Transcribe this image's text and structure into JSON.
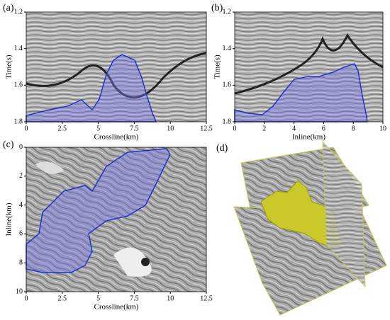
{
  "panels": [
    {
      "label": "(a)",
      "x_label": "Crossline(km)",
      "y_label": "Time(s)",
      "xticks": [
        0,
        2.5,
        5,
        7.5,
        10,
        12.5
      ],
      "yticks": [
        1.2,
        1.4,
        1.6,
        1.8
      ]
    },
    {
      "label": "(b)",
      "x_label": "Inline(km)",
      "y_label": "Time(s)",
      "xticks": [
        0,
        2,
        4,
        6,
        8,
        10
      ],
      "yticks": [
        1.2,
        1.4,
        1.6,
        1.8
      ]
    },
    {
      "label": "(c)",
      "x_label": "Crossline(km)",
      "y_label": "Inline(km)",
      "xticks": [
        0,
        2.5,
        5,
        7.5,
        10,
        12.5
      ],
      "yticks": [
        0,
        2,
        4,
        6,
        8,
        10
      ]
    },
    {
      "label": "(d)"
    }
  ]
}
